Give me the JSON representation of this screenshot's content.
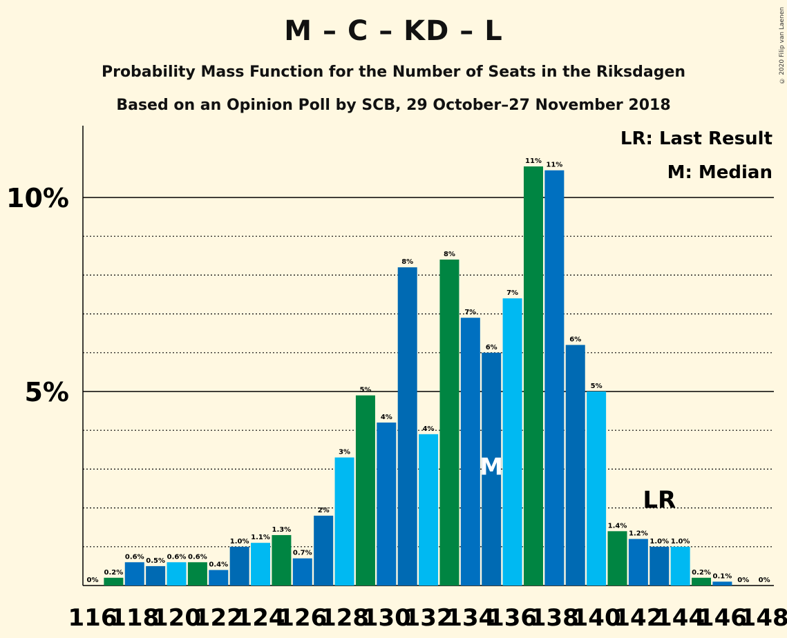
{
  "title": "M – C – KD – L",
  "subtitle1": "Probability Mass Function for the Number of Seats in the Riksdagen",
  "subtitle2": "Based on an Opinion Poll by SCB, 29 October–27 November 2018",
  "copyright": "© 2020 Filip van Laenen",
  "colors": {
    "background": "#FFF8E1",
    "green": "#008542",
    "blue": "#0070C0",
    "mid_blue": "#006AB3",
    "cyan": "#00B9F2"
  },
  "chart_data": {
    "type": "bar",
    "x": [
      116,
      117,
      118,
      119,
      120,
      121,
      122,
      123,
      124,
      125,
      126,
      127,
      128,
      129,
      130,
      131,
      132,
      133,
      134,
      135,
      136,
      137,
      138,
      139,
      140,
      141,
      142,
      143,
      144,
      145,
      146,
      147,
      148
    ],
    "x_tick_labels": [
      "116",
      "118",
      "120",
      "122",
      "124",
      "126",
      "128",
      "130",
      "132",
      "134",
      "136",
      "138",
      "140",
      "142",
      "144",
      "146",
      "148"
    ],
    "values": [
      0,
      0.2,
      0.6,
      0.5,
      0.6,
      0.6,
      0.4,
      1.0,
      1.1,
      1.3,
      0.7,
      1.8,
      3.3,
      4.9,
      4.2,
      8.2,
      3.9,
      8.4,
      6.9,
      6.0,
      7.4,
      10.8,
      10.7,
      6.2,
      5.0,
      1.4,
      1.2,
      1.0,
      1.0,
      0.2,
      0.1,
      0,
      0
    ],
    "labels": [
      "0%",
      "0.2%",
      "0.6%",
      "0.5%",
      "0.6%",
      "0.6%",
      "0.4%",
      "1.0%",
      "1.1%",
      "1.3%",
      "0.7%",
      "2%",
      "3%",
      "5%",
      "4%",
      "8%",
      "4%",
      "8%",
      "7%",
      "6%",
      "7%",
      "11%",
      "11%",
      "6%",
      "5%",
      "1.4%",
      "1.2%",
      "1.0%",
      "1.0%",
      "0.2%",
      "0.1%",
      "0%",
      "0%"
    ],
    "bar_colors": [
      "#008542",
      "#008542",
      "#0070C0",
      "#006AB3",
      "#00B9F2",
      "#008542",
      "#0070C0",
      "#006AB3",
      "#00B9F2",
      "#008542",
      "#0070C0",
      "#006AB3",
      "#00B9F2",
      "#008542",
      "#0070C0",
      "#006AB3",
      "#00B9F2",
      "#008542",
      "#0070C0",
      "#006AB3",
      "#00B9F2",
      "#008542",
      "#0070C0",
      "#006AB3",
      "#00B9F2",
      "#008542",
      "#0070C0",
      "#006AB3",
      "#00B9F2",
      "#008542",
      "#0070C0",
      "#006AB3",
      "#00B9F2"
    ],
    "y_tick_labels": [
      {
        "value": 5,
        "label": "5%"
      },
      {
        "value": 10,
        "label": "10%"
      }
    ],
    "ylim": [
      0,
      11.8
    ],
    "dotted_gridlines": [
      1,
      2,
      3,
      4,
      6,
      7,
      8,
      9
    ],
    "median_seat": 135,
    "median_marker": "M",
    "last_result_seat": 143,
    "last_result_marker": "LR",
    "legend": [
      "LR: Last Result",
      "M: Median"
    ],
    "legend_position": "top-right"
  }
}
